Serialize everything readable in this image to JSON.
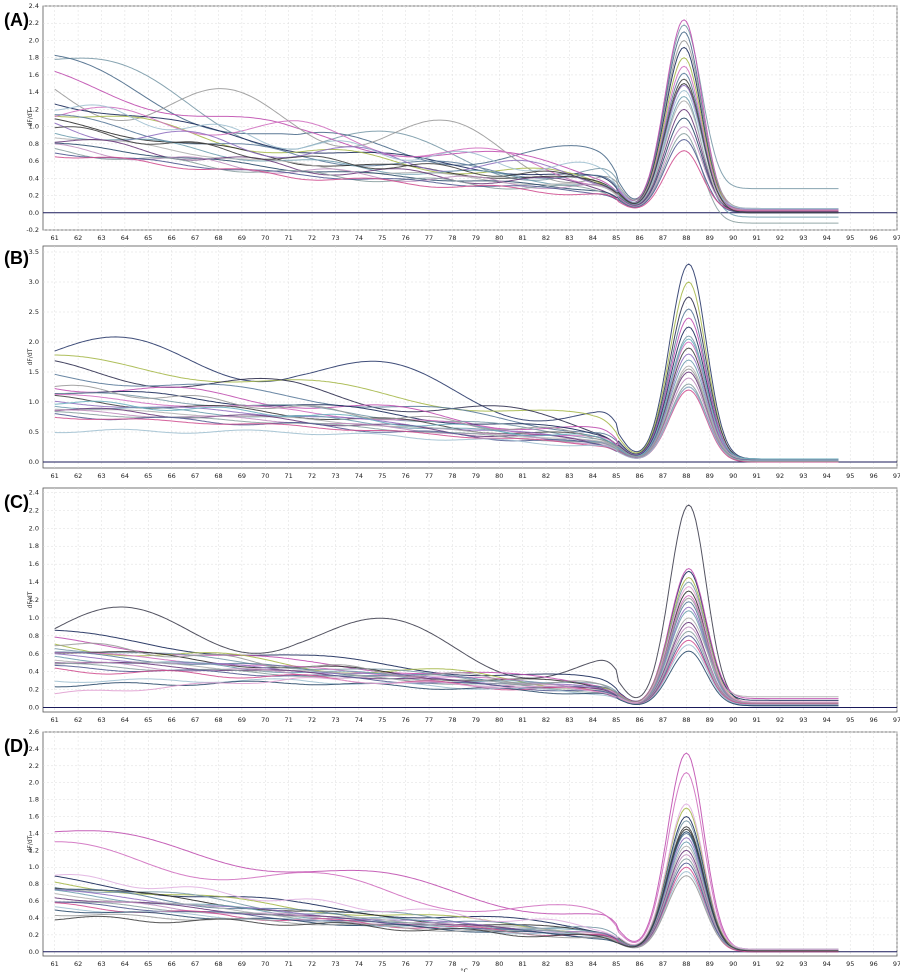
{
  "chart_data": [
    {
      "type": "line",
      "panel": "(A)",
      "ylabel": "dF/dT",
      "xlabel": "",
      "xlim": [
        60.5,
        97
      ],
      "ylim": [
        -0.2,
        2.4
      ],
      "yticks": [
        -0.2,
        0.0,
        0.2,
        0.4,
        0.6,
        0.8,
        1.0,
        1.2,
        1.4,
        1.6,
        1.8,
        2.0,
        2.2,
        2.4
      ],
      "xticks": [
        61,
        62,
        63,
        64,
        65,
        66,
        67,
        68,
        69,
        70,
        71,
        72,
        73,
        74,
        75,
        76,
        77,
        78,
        79,
        80,
        81,
        82,
        83,
        84,
        85,
        86,
        87,
        88,
        89,
        90,
        91,
        92,
        93,
        94,
        95,
        96,
        97
      ],
      "grid": true,
      "peak_temp": 87.9,
      "baseline": 0.0,
      "curve_colors": [
        "#7a9aa8",
        "#4a6a8a",
        "#c050b0",
        "#9a9a9a",
        "#1a2a5a",
        "#a6b84a",
        "#d070c0",
        "#5a7a9a",
        "#303030",
        "#9070c0",
        "#70a0b0",
        "#b0b0b0",
        "#6a3a7a",
        "#2a4a6a",
        "#c090c0",
        "#8aa0a0",
        "#505a90",
        "#d05090",
        "#a0c0d0",
        "#404040"
      ],
      "series": [
        {
          "start": 1.78,
          "mid": 0.85,
          "low": 0.5,
          "peak": 2.18,
          "tail": 0.28,
          "bump": 0.2
        },
        {
          "start": 1.7,
          "mid": 0.8,
          "low": 0.62,
          "peak": 2.1,
          "tail": 0.0,
          "bump": 0.15
        },
        {
          "start": 1.55,
          "mid": 0.9,
          "low": 0.48,
          "peak": 2.24,
          "tail": 0.02,
          "bump": 0.1
        },
        {
          "start": 1.4,
          "mid": 1.1,
          "low": 0.55,
          "peak": 2.0,
          "tail": 0.05,
          "bump": 0.25
        },
        {
          "start": 1.3,
          "mid": 0.75,
          "low": 0.4,
          "peak": 1.92,
          "tail": 0.01,
          "bump": 0.05
        },
        {
          "start": 1.2,
          "mid": 0.7,
          "low": 0.38,
          "peak": 1.8,
          "tail": 0.03,
          "bump": 0.08
        },
        {
          "start": 1.15,
          "mid": 0.95,
          "low": 0.45,
          "peak": 1.7,
          "tail": 0.02,
          "bump": 0.12
        },
        {
          "start": 1.1,
          "mid": 0.65,
          "low": 0.42,
          "peak": 1.62,
          "tail": 0.0,
          "bump": 0.06
        },
        {
          "start": 1.05,
          "mid": 0.6,
          "low": 0.36,
          "peak": 1.5,
          "tail": 0.01,
          "bump": 0.04
        },
        {
          "start": 1.0,
          "mid": 0.72,
          "low": 0.44,
          "peak": 1.48,
          "tail": 0.04,
          "bump": 0.1
        },
        {
          "start": 0.95,
          "mid": 0.58,
          "low": 0.35,
          "peak": 1.35,
          "tail": -0.05,
          "bump": 0.05
        },
        {
          "start": 0.9,
          "mid": 0.55,
          "low": 0.3,
          "peak": 1.3,
          "tail": 0.02,
          "bump": 0.03
        },
        {
          "start": 0.85,
          "mid": 0.52,
          "low": 0.32,
          "peak": 1.2,
          "tail": 0.0,
          "bump": 0.06
        },
        {
          "start": 0.8,
          "mid": 0.5,
          "low": 0.28,
          "peak": 1.1,
          "tail": 0.01,
          "bump": 0.02
        },
        {
          "start": 0.75,
          "mid": 0.48,
          "low": 0.3,
          "peak": 1.0,
          "tail": 0.03,
          "bump": 0.05
        },
        {
          "start": 0.72,
          "mid": 0.45,
          "low": 0.26,
          "peak": 0.92,
          "tail": -0.12,
          "bump": 0.04
        },
        {
          "start": 0.7,
          "mid": 0.44,
          "low": 0.25,
          "peak": 0.85,
          "tail": 0.0,
          "bump": 0.02
        },
        {
          "start": 0.68,
          "mid": 0.42,
          "low": 0.22,
          "peak": 0.72,
          "tail": 0.02,
          "bump": 0.03
        },
        {
          "start": 1.25,
          "mid": 0.8,
          "low": 0.5,
          "peak": 1.42,
          "tail": 0.05,
          "bump": 0.08
        },
        {
          "start": 0.98,
          "mid": 0.62,
          "low": 0.4,
          "peak": 1.55,
          "tail": 0.0,
          "bump": 0.05
        }
      ]
    },
    {
      "type": "line",
      "panel": "(B)",
      "ylabel": "dF/dT",
      "xlabel": "",
      "xlim": [
        60.5,
        97
      ],
      "ylim": [
        -0.1,
        3.6
      ],
      "yticks": [
        0.0,
        0.5,
        1.0,
        1.5,
        2.0,
        2.5,
        3.0,
        3.5
      ],
      "xticks": [
        61,
        62,
        63,
        64,
        65,
        66,
        67,
        68,
        69,
        70,
        71,
        72,
        73,
        74,
        75,
        76,
        77,
        78,
        79,
        80,
        81,
        82,
        83,
        84,
        85,
        86,
        87,
        88,
        89,
        90,
        91,
        92,
        93,
        94,
        95,
        96,
        97
      ],
      "grid": true,
      "peak_temp": 88.1,
      "baseline": 0.0,
      "curve_colors": [
        "#2a3a6a",
        "#a6b84a",
        "#303050",
        "#5a7a9a",
        "#c050b0",
        "#1a2a5a",
        "#7a9aa8",
        "#d070c0",
        "#404040",
        "#9070c0",
        "#70a0b0",
        "#b0b0b0",
        "#6a3a7a",
        "#c090c0",
        "#8aa0a0",
        "#505a90",
        "#d05090",
        "#a0c0d0",
        "#6ab0c0",
        "#9a9a9a"
      ],
      "series": [
        {
          "start": 1.85,
          "mid": 1.6,
          "low": 0.82,
          "peak": 3.3,
          "tail": 0.05,
          "bump": 0.3
        },
        {
          "start": 1.7,
          "mid": 1.3,
          "low": 0.7,
          "peak": 3.0,
          "tail": 0.02,
          "bump": 0.1
        },
        {
          "start": 1.55,
          "mid": 1.2,
          "low": 0.6,
          "peak": 2.75,
          "tail": 0.04,
          "bump": 0.15
        },
        {
          "start": 1.45,
          "mid": 1.1,
          "low": 0.55,
          "peak": 2.55,
          "tail": 0.0,
          "bump": 0.08
        },
        {
          "start": 1.3,
          "mid": 1.0,
          "low": 0.5,
          "peak": 2.4,
          "tail": 0.03,
          "bump": 0.1
        },
        {
          "start": 1.2,
          "mid": 0.95,
          "low": 0.48,
          "peak": 2.25,
          "tail": 0.01,
          "bump": 0.06
        },
        {
          "start": 1.15,
          "mid": 0.9,
          "low": 0.45,
          "peak": 2.1,
          "tail": 0.05,
          "bump": 0.05
        },
        {
          "start": 1.1,
          "mid": 0.85,
          "low": 0.42,
          "peak": 2.0,
          "tail": 0.02,
          "bump": 0.04
        },
        {
          "start": 1.05,
          "mid": 0.8,
          "low": 0.4,
          "peak": 1.9,
          "tail": 0.0,
          "bump": 0.06
        },
        {
          "start": 1.0,
          "mid": 0.78,
          "low": 0.38,
          "peak": 1.8,
          "tail": 0.03,
          "bump": 0.03
        },
        {
          "start": 0.95,
          "mid": 0.75,
          "low": 0.36,
          "peak": 1.7,
          "tail": 0.01,
          "bump": 0.04
        },
        {
          "start": 0.9,
          "mid": 0.72,
          "low": 0.35,
          "peak": 1.6,
          "tail": 0.04,
          "bump": 0.02
        },
        {
          "start": 0.88,
          "mid": 0.7,
          "low": 0.34,
          "peak": 1.5,
          "tail": 0.0,
          "bump": 0.05
        },
        {
          "start": 0.85,
          "mid": 0.68,
          "low": 0.33,
          "peak": 1.4,
          "tail": 0.02,
          "bump": 0.03
        },
        {
          "start": 0.82,
          "mid": 0.65,
          "low": 0.32,
          "peak": 1.3,
          "tail": 0.01,
          "bump": 0.02
        },
        {
          "start": 0.78,
          "mid": 0.62,
          "low": 0.3,
          "peak": 1.25,
          "tail": 0.03,
          "bump": 0.04
        },
        {
          "start": 0.75,
          "mid": 0.6,
          "low": 0.3,
          "peak": 1.2,
          "tail": 0.0,
          "bump": 0.02
        },
        {
          "start": 0.52,
          "mid": 0.5,
          "low": 0.28,
          "peak": 1.25,
          "tail": 0.02,
          "bump": 0.03
        },
        {
          "start": 1.0,
          "mid": 0.8,
          "low": 0.4,
          "peak": 2.05,
          "tail": 0.05,
          "bump": 0.05
        },
        {
          "start": 1.25,
          "mid": 0.9,
          "low": 0.45,
          "peak": 1.55,
          "tail": 0.01,
          "bump": 0.06
        }
      ]
    },
    {
      "type": "line",
      "panel": "(C)",
      "ylabel": "dF/dT",
      "xlabel": "",
      "xlim": [
        60.5,
        97
      ],
      "ylim": [
        -0.05,
        2.45
      ],
      "yticks": [
        0.0,
        0.2,
        0.4,
        0.6,
        0.8,
        1.0,
        1.2,
        1.4,
        1.6,
        1.8,
        2.0,
        2.2,
        2.4
      ],
      "xticks": [
        61,
        62,
        63,
        64,
        65,
        66,
        67,
        68,
        69,
        70,
        71,
        72,
        73,
        74,
        75,
        76,
        77,
        78,
        79,
        80,
        81,
        82,
        83,
        84,
        85,
        86,
        87,
        88,
        89,
        90,
        91,
        92,
        93,
        94,
        95,
        96,
        97
      ],
      "grid": true,
      "peak_temp": 88.1,
      "baseline": 0.0,
      "curve_colors": [
        "#404050",
        "#1a2a5a",
        "#c050b0",
        "#a6b84a",
        "#7a9aa8",
        "#303030",
        "#d070c0",
        "#5a7a9a",
        "#9070c0",
        "#70a0b0",
        "#b0b0b0",
        "#6a3a7a",
        "#c090c0",
        "#8aa0a0",
        "#505a90",
        "#d05090",
        "#a0c0d0",
        "#2a4a6a",
        "#9a9a9a",
        "#e0a0d0"
      ],
      "series": [
        {
          "start": 0.88,
          "mid": 0.85,
          "low": 0.5,
          "peak": 2.26,
          "tail": 0.05,
          "bump": 0.25
        },
        {
          "start": 0.82,
          "mid": 0.55,
          "low": 0.3,
          "peak": 1.52,
          "tail": 0.08,
          "bump": 0.05
        },
        {
          "start": 0.75,
          "mid": 0.5,
          "low": 0.28,
          "peak": 1.55,
          "tail": 0.1,
          "bump": 0.04
        },
        {
          "start": 0.7,
          "mid": 0.48,
          "low": 0.26,
          "peak": 1.45,
          "tail": 0.06,
          "bump": 0.06
        },
        {
          "start": 0.68,
          "mid": 0.46,
          "low": 0.25,
          "peak": 1.4,
          "tail": 0.05,
          "bump": 0.03
        },
        {
          "start": 0.65,
          "mid": 0.45,
          "low": 0.24,
          "peak": 1.3,
          "tail": 0.04,
          "bump": 0.04
        },
        {
          "start": 0.62,
          "mid": 0.44,
          "low": 0.24,
          "peak": 1.25,
          "tail": 0.06,
          "bump": 0.02
        },
        {
          "start": 0.6,
          "mid": 0.43,
          "low": 0.23,
          "peak": 1.18,
          "tail": 0.03,
          "bump": 0.03
        },
        {
          "start": 0.58,
          "mid": 0.42,
          "low": 0.22,
          "peak": 1.12,
          "tail": 0.05,
          "bump": 0.02
        },
        {
          "start": 0.56,
          "mid": 0.41,
          "low": 0.22,
          "peak": 1.08,
          "tail": 0.04,
          "bump": 0.03
        },
        {
          "start": 0.54,
          "mid": 0.4,
          "low": 0.21,
          "peak": 1.0,
          "tail": 0.12,
          "bump": 0.02
        },
        {
          "start": 0.52,
          "mid": 0.39,
          "low": 0.2,
          "peak": 0.95,
          "tail": 0.03,
          "bump": 0.02
        },
        {
          "start": 0.5,
          "mid": 0.38,
          "low": 0.2,
          "peak": 0.9,
          "tail": 0.05,
          "bump": 0.03
        },
        {
          "start": 0.48,
          "mid": 0.37,
          "low": 0.19,
          "peak": 0.85,
          "tail": 0.04,
          "bump": 0.02
        },
        {
          "start": 0.45,
          "mid": 0.36,
          "low": 0.18,
          "peak": 0.8,
          "tail": 0.02,
          "bump": 0.02
        },
        {
          "start": 0.42,
          "mid": 0.34,
          "low": 0.18,
          "peak": 0.75,
          "tail": 0.04,
          "bump": 0.03
        },
        {
          "start": 0.3,
          "mid": 0.3,
          "low": 0.17,
          "peak": 0.7,
          "tail": 0.03,
          "bump": 0.02
        },
        {
          "start": 0.25,
          "mid": 0.28,
          "low": 0.16,
          "peak": 0.63,
          "tail": 0.02,
          "bump": 0.02
        },
        {
          "start": 0.72,
          "mid": 0.47,
          "low": 0.25,
          "peak": 1.22,
          "tail": 0.05,
          "bump": 0.04
        },
        {
          "start": 0.15,
          "mid": 0.32,
          "low": 0.2,
          "peak": 1.35,
          "tail": 0.06,
          "bump": 0.02
        }
      ]
    },
    {
      "type": "line",
      "panel": "(D)",
      "ylabel": "dF/dT",
      "xlabel": "°C",
      "xlim": [
        60.5,
        97
      ],
      "ylim": [
        -0.05,
        2.6
      ],
      "yticks": [
        0.0,
        0.2,
        0.4,
        0.6,
        0.8,
        1.0,
        1.2,
        1.4,
        1.6,
        1.8,
        2.0,
        2.2,
        2.4,
        2.6
      ],
      "xticks": [
        61,
        62,
        63,
        64,
        65,
        66,
        67,
        68,
        69,
        70,
        71,
        72,
        73,
        74,
        75,
        76,
        77,
        78,
        79,
        80,
        81,
        82,
        83,
        84,
        85,
        86,
        87,
        88,
        89,
        90,
        91,
        92,
        93,
        94,
        95,
        96,
        97
      ],
      "grid": true,
      "peak_temp": 88.0,
      "baseline": 0.0,
      "curve_colors": [
        "#c050b0",
        "#d070c0",
        "#1a2a5a",
        "#a6b84a",
        "#7a9aa8",
        "#303030",
        "#5a7a9a",
        "#9070c0",
        "#70a0b0",
        "#b0b0b0",
        "#6a3a7a",
        "#c090c0",
        "#8aa0a0",
        "#505a90",
        "#d05090",
        "#a0c0d0",
        "#2a4a6a",
        "#9a9a9a",
        "#404040",
        "#e0b0e0"
      ],
      "series": [
        {
          "start": 1.42,
          "mid": 1.0,
          "low": 0.45,
          "peak": 2.35,
          "tail": 0.02,
          "bump": 0.1
        },
        {
          "start": 1.2,
          "mid": 0.85,
          "low": 0.4,
          "peak": 2.12,
          "tail": 0.01,
          "bump": 0.12
        },
        {
          "start": 0.85,
          "mid": 0.55,
          "low": 0.28,
          "peak": 1.6,
          "tail": 0.03,
          "bump": 0.05
        },
        {
          "start": 0.82,
          "mid": 0.52,
          "low": 0.26,
          "peak": 1.7,
          "tail": 0.02,
          "bump": 0.04
        },
        {
          "start": 0.8,
          "mid": 0.5,
          "low": 0.25,
          "peak": 1.55,
          "tail": 0.01,
          "bump": 0.05
        },
        {
          "start": 0.78,
          "mid": 0.48,
          "low": 0.24,
          "peak": 1.45,
          "tail": 0.02,
          "bump": 0.03
        },
        {
          "start": 0.75,
          "mid": 0.46,
          "low": 0.24,
          "peak": 1.4,
          "tail": 0.0,
          "bump": 0.04
        },
        {
          "start": 0.72,
          "mid": 0.45,
          "low": 0.23,
          "peak": 1.35,
          "tail": 0.02,
          "bump": 0.02
        },
        {
          "start": 0.7,
          "mid": 0.44,
          "low": 0.22,
          "peak": 1.3,
          "tail": 0.01,
          "bump": 0.03
        },
        {
          "start": 0.68,
          "mid": 0.43,
          "low": 0.22,
          "peak": 1.25,
          "tail": 0.03,
          "bump": 0.02
        },
        {
          "start": 0.65,
          "mid": 0.42,
          "low": 0.21,
          "peak": 1.2,
          "tail": 0.0,
          "bump": 0.02
        },
        {
          "start": 0.62,
          "mid": 0.41,
          "low": 0.2,
          "peak": 1.15,
          "tail": 0.02,
          "bump": 0.03
        },
        {
          "start": 0.6,
          "mid": 0.4,
          "low": 0.2,
          "peak": 1.1,
          "tail": 0.01,
          "bump": 0.02
        },
        {
          "start": 0.58,
          "mid": 0.39,
          "low": 0.19,
          "peak": 1.05,
          "tail": 0.02,
          "bump": 0.02
        },
        {
          "start": 0.55,
          "mid": 0.38,
          "low": 0.19,
          "peak": 1.0,
          "tail": 0.0,
          "bump": 0.03
        },
        {
          "start": 0.52,
          "mid": 0.37,
          "low": 0.18,
          "peak": 0.95,
          "tail": 0.02,
          "bump": 0.02
        },
        {
          "start": 0.5,
          "mid": 0.36,
          "low": 0.18,
          "peak": 1.42,
          "tail": 0.01,
          "bump": 0.02
        },
        {
          "start": 0.45,
          "mid": 0.35,
          "low": 0.17,
          "peak": 0.9,
          "tail": 0.02,
          "bump": 0.02
        },
        {
          "start": 0.4,
          "mid": 0.34,
          "low": 0.17,
          "peak": 1.48,
          "tail": 0.01,
          "bump": 0.03
        },
        {
          "start": 0.9,
          "mid": 0.6,
          "low": 0.3,
          "peak": 1.75,
          "tail": 0.03,
          "bump": 0.04
        }
      ]
    }
  ]
}
